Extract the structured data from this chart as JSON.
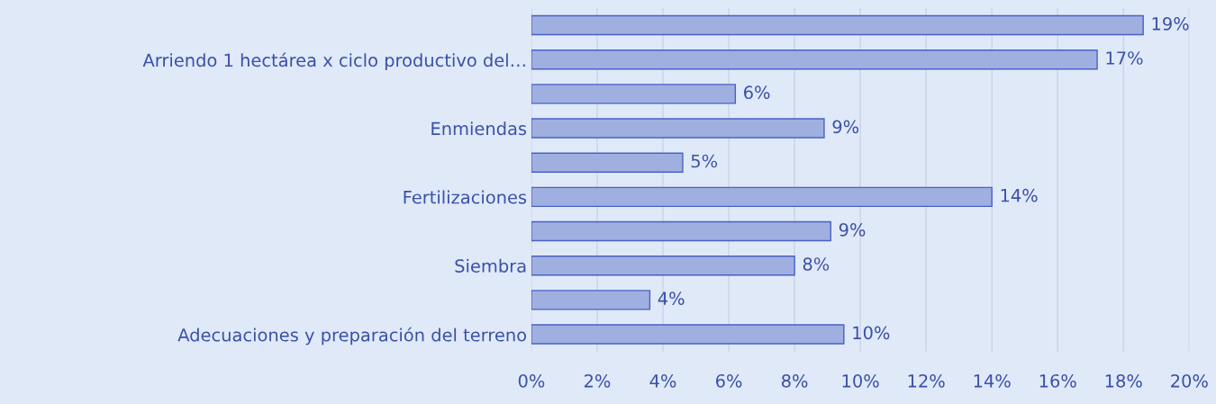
{
  "chart_data": {
    "type": "bar",
    "orientation": "horizontal",
    "categories": [
      null,
      "Arriendo 1 hectárea x ciclo productivo del…",
      null,
      "Enmiendas",
      null,
      "Fertilizaciones",
      null,
      "Siembra",
      null,
      "Adecuaciones y preparación del terreno"
    ],
    "values": [
      18.6,
      17.2,
      6.2,
      8.9,
      4.6,
      14.0,
      9.1,
      8.0,
      3.6,
      9.5
    ],
    "value_labels": [
      "19%",
      "17%",
      "6%",
      "9%",
      "5%",
      "14%",
      "9%",
      "8%",
      "4%",
      "10%"
    ],
    "color": "#9fb0e0",
    "xlim": [
      0,
      20
    ],
    "xticks": [
      {
        "value": 0,
        "label": "0%"
      },
      {
        "value": 2,
        "label": "2%"
      },
      {
        "value": 4,
        "label": "4%"
      },
      {
        "value": 6,
        "label": "6%"
      },
      {
        "value": 8,
        "label": "8%"
      },
      {
        "value": 10,
        "label": "10%"
      },
      {
        "value": 12,
        "label": "12%"
      },
      {
        "value": 14,
        "label": "14%"
      },
      {
        "value": 16,
        "label": "16%"
      },
      {
        "value": 18,
        "label": "18%"
      },
      {
        "value": 20,
        "label": "20%"
      }
    ],
    "grid": "x",
    "legend": false
  }
}
